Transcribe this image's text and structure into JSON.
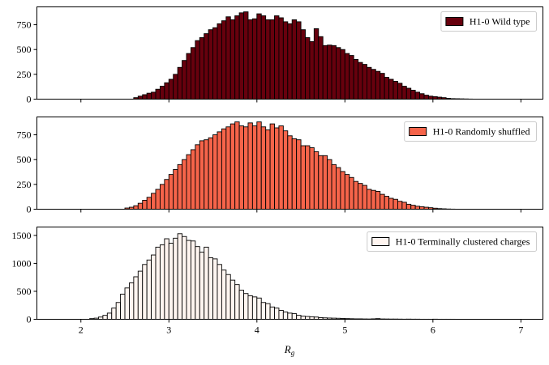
{
  "chart_data": {
    "type": "bar",
    "xlabel": "R",
    "xlabel_sub": "g",
    "xlim": [
      1.5,
      7.25
    ],
    "x_ticks": [
      2,
      3,
      4,
      5,
      6,
      7
    ],
    "bin_start": 1.8,
    "bin_width": 0.05,
    "bar_edge_color": "#000000",
    "panels": [
      {
        "name": "H1-0 Wild type",
        "color": "#67000d",
        "ylim": [
          0,
          930
        ],
        "y_ticks": [
          0,
          250,
          500,
          750
        ],
        "legend_position": "top-right",
        "values": [
          0,
          0,
          0,
          0,
          0,
          0,
          0,
          0,
          0,
          0,
          0,
          0,
          0,
          0,
          0,
          0,
          15,
          30,
          45,
          60,
          70,
          100,
          130,
          165,
          200,
          250,
          320,
          390,
          460,
          520,
          590,
          620,
          660,
          700,
          720,
          760,
          790,
          830,
          800,
          840,
          870,
          880,
          800,
          810,
          860,
          840,
          800,
          800,
          840,
          820,
          780,
          760,
          800,
          780,
          700,
          620,
          580,
          710,
          630,
          540,
          545,
          540,
          520,
          500,
          460,
          440,
          400,
          370,
          350,
          320,
          300,
          280,
          260,
          220,
          200,
          180,
          160,
          130,
          110,
          90,
          70,
          55,
          40,
          30,
          25,
          20,
          15,
          8,
          5,
          4,
          3,
          2,
          1,
          0,
          0,
          0,
          0,
          0,
          0,
          0,
          0,
          0,
          0,
          0,
          0,
          0
        ]
      },
      {
        "name": "H1-0 Randomly shuffled",
        "color": "#f6644a",
        "ylim": [
          0,
          930
        ],
        "y_ticks": [
          0,
          250,
          500,
          750
        ],
        "legend_position": "top-right",
        "values": [
          0,
          0,
          0,
          0,
          0,
          0,
          0,
          0,
          0,
          0,
          0,
          0,
          0,
          0,
          12,
          20,
          35,
          60,
          90,
          120,
          160,
          200,
          250,
          300,
          350,
          400,
          450,
          500,
          550,
          600,
          650,
          690,
          700,
          720,
          750,
          780,
          810,
          830,
          860,
          880,
          840,
          830,
          870,
          840,
          880,
          830,
          800,
          860,
          820,
          840,
          790,
          740,
          710,
          700,
          640,
          640,
          620,
          580,
          540,
          540,
          500,
          450,
          420,
          380,
          350,
          320,
          280,
          260,
          240,
          200,
          190,
          180,
          150,
          130,
          110,
          100,
          80,
          70,
          50,
          40,
          30,
          25,
          20,
          15,
          10,
          6,
          4,
          2,
          1,
          0,
          0,
          0,
          0,
          0,
          0,
          0,
          0,
          0,
          0,
          0,
          0,
          0,
          0,
          0,
          0
        ]
      },
      {
        "name": "H1-0 Terminally clustered charges",
        "color": "#fff5f0",
        "ylim": [
          0,
          1650
        ],
        "y_ticks": [
          0,
          500,
          1000,
          1500
        ],
        "legend_position": "top-right",
        "values": [
          0,
          0,
          0,
          0,
          0,
          0,
          12,
          20,
          40,
          70,
          110,
          200,
          300,
          450,
          560,
          650,
          760,
          860,
          980,
          1060,
          1150,
          1290,
          1330,
          1440,
          1360,
          1450,
          1530,
          1480,
          1410,
          1400,
          1300,
          1200,
          1290,
          1100,
          1080,
          980,
          880,
          800,
          700,
          620,
          520,
          460,
          420,
          400,
          380,
          300,
          280,
          220,
          200,
          160,
          130,
          110,
          100,
          70,
          55,
          50,
          45,
          40,
          30,
          25,
          22,
          20,
          18,
          15,
          12,
          10,
          8,
          8,
          6,
          5,
          8,
          12,
          6,
          5,
          4,
          4,
          3,
          2,
          3,
          2,
          2,
          1,
          1,
          1,
          2,
          1,
          1,
          1,
          1,
          0,
          0,
          0,
          0,
          0,
          0,
          0,
          0,
          0,
          0,
          0,
          0,
          0,
          0,
          0,
          0,
          0
        ]
      }
    ]
  }
}
